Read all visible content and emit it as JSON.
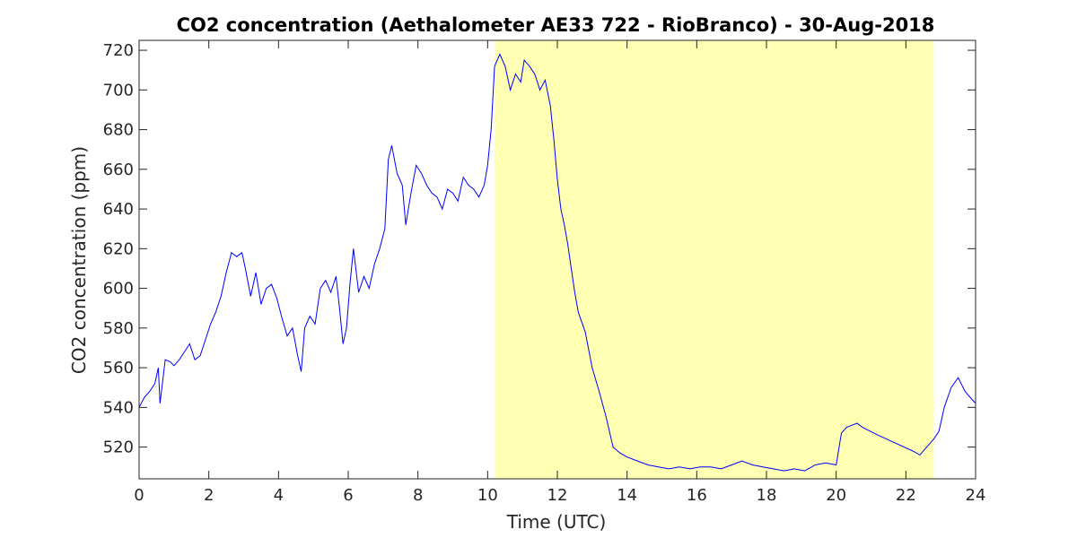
{
  "chart_data": {
    "type": "line",
    "title": "CO2 concentration (Aethalometer AE33 722 - RioBranco) - 30-Aug-2018",
    "xlabel": "Time (UTC)",
    "ylabel": "CO2 concentration (ppm)",
    "xlim": [
      0,
      24
    ],
    "ylim": [
      504,
      725
    ],
    "xticks": [
      0,
      2,
      4,
      6,
      8,
      10,
      12,
      14,
      16,
      18,
      20,
      22,
      24
    ],
    "yticks": [
      520,
      540,
      560,
      580,
      600,
      620,
      640,
      660,
      680,
      700,
      720
    ],
    "grid": false,
    "line_color": "#0000ff",
    "highlight": {
      "x_start": 10.2,
      "x_end": 22.8,
      "color": "#ffffb3"
    },
    "series": [
      {
        "x": [
          0,
          0.15,
          0.3,
          0.45,
          0.55,
          0.6,
          0.75,
          0.9,
          1.0,
          1.15,
          1.3,
          1.45,
          1.6,
          1.75,
          1.9,
          2.05,
          2.2,
          2.35,
          2.5,
          2.65,
          2.8,
          2.95,
          3.05,
          3.2,
          3.35,
          3.5,
          3.65,
          3.8,
          3.95,
          4.1,
          4.25,
          4.4,
          4.55,
          4.65,
          4.75,
          4.9,
          5.05,
          5.2,
          5.35,
          5.5,
          5.65,
          5.75,
          5.85,
          5.95,
          6.05,
          6.15,
          6.3,
          6.45,
          6.6,
          6.75,
          6.9,
          7.05,
          7.15,
          7.25,
          7.4,
          7.55,
          7.65,
          7.8,
          7.95,
          8.1,
          8.25,
          8.4,
          8.55,
          8.7,
          8.85,
          9.0,
          9.15,
          9.3,
          9.45,
          9.6,
          9.75,
          9.9,
          10.0,
          10.1,
          10.2,
          10.35,
          10.5,
          10.65,
          10.8,
          10.95,
          11.05,
          11.2,
          11.35,
          11.5,
          11.65,
          11.8,
          11.9,
          12.0,
          12.1,
          12.2,
          12.3,
          12.4,
          12.5,
          12.6,
          12.8,
          13.0,
          13.2,
          13.4,
          13.6,
          13.8,
          14.0,
          14.3,
          14.6,
          14.9,
          15.2,
          15.5,
          15.8,
          16.1,
          16.4,
          16.7,
          17.0,
          17.3,
          17.6,
          17.9,
          18.2,
          18.5,
          18.8,
          19.1,
          19.4,
          19.7,
          20.0,
          20.15,
          20.3,
          20.45,
          20.6,
          20.75,
          21.2,
          21.7,
          22.2,
          22.4,
          22.6,
          22.8,
          22.95,
          23.1,
          23.3,
          23.5,
          23.7,
          23.9,
          24.0
        ],
        "y": [
          540,
          545,
          548,
          552,
          560,
          542,
          564,
          563,
          561,
          564,
          568,
          572,
          564,
          566,
          574,
          582,
          588,
          596,
          608,
          618,
          616,
          618,
          610,
          596,
          608,
          592,
          600,
          602,
          595,
          585,
          576,
          580,
          566,
          558,
          580,
          586,
          582,
          600,
          604,
          598,
          606,
          590,
          572,
          580,
          602,
          620,
          598,
          606,
          600,
          612,
          620,
          630,
          665,
          672,
          658,
          652,
          632,
          648,
          662,
          658,
          652,
          648,
          646,
          640,
          650,
          648,
          644,
          656,
          652,
          650,
          646,
          652,
          662,
          680,
          712,
          718,
          712,
          700,
          708,
          704,
          715,
          712,
          708,
          700,
          705,
          692,
          675,
          655,
          640,
          632,
          622,
          610,
          598,
          588,
          578,
          560,
          548,
          535,
          520,
          517,
          515,
          513,
          511,
          510,
          509,
          510,
          509,
          510,
          510,
          509,
          511,
          513,
          511,
          510,
          509,
          508,
          509,
          508,
          511,
          512,
          511,
          527,
          530,
          531,
          532,
          530,
          526,
          522,
          518,
          516,
          520,
          524,
          528,
          540,
          550,
          555,
          548,
          544,
          542
        ]
      }
    ]
  }
}
